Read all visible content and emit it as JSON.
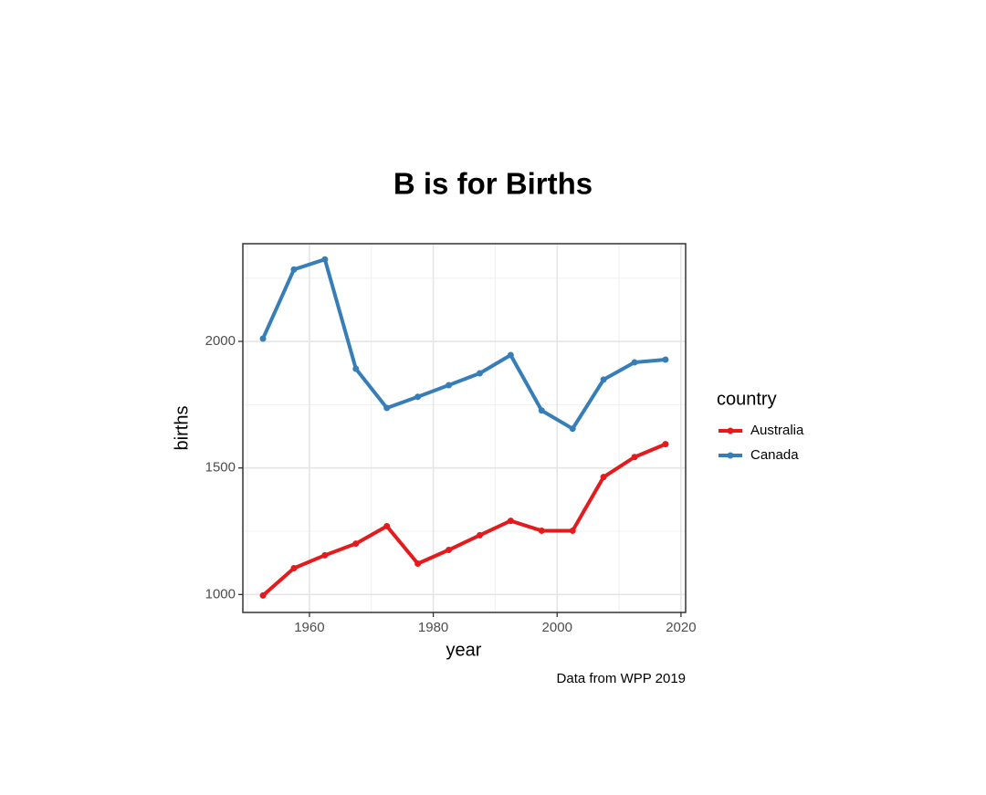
{
  "chart_data": {
    "type": "line",
    "title": "B is for Births",
    "x_label": "year",
    "y_label": "births",
    "caption": "Data from WPP 2019",
    "legend_title": "country",
    "legend_position": "right",
    "x": [
      1952.5,
      1957.5,
      1962.5,
      1967.5,
      1972.5,
      1977.5,
      1982.5,
      1987.5,
      1992.5,
      1997.5,
      2002.5,
      2007.5,
      2012.5,
      2017.5
    ],
    "series": [
      {
        "name": "Australia",
        "color": "#e41a1c",
        "values": [
          996,
          1104,
          1155,
          1201,
          1270,
          1122,
          1176,
          1234,
          1291,
          1252,
          1252,
          1464,
          1543,
          1594
        ]
      },
      {
        "name": "Canada",
        "color": "#377eb8",
        "values": [
          2011,
          2284,
          2324,
          1892,
          1737,
          1781,
          1827,
          1874,
          1946,
          1727,
          1655,
          1849,
          1917,
          1928
        ]
      }
    ],
    "xlim": [
      1949.25,
      2020.75
    ],
    "xticks": [
      1960,
      1980,
      2000,
      2020
    ],
    "xminorticks": [
      1950,
      1970,
      1990,
      2010
    ],
    "ylim": [
      929,
      2386
    ],
    "yticks": [
      1000,
      1500,
      2000
    ],
    "yminorticks": [
      1250,
      1750,
      2250
    ],
    "grid": true
  }
}
